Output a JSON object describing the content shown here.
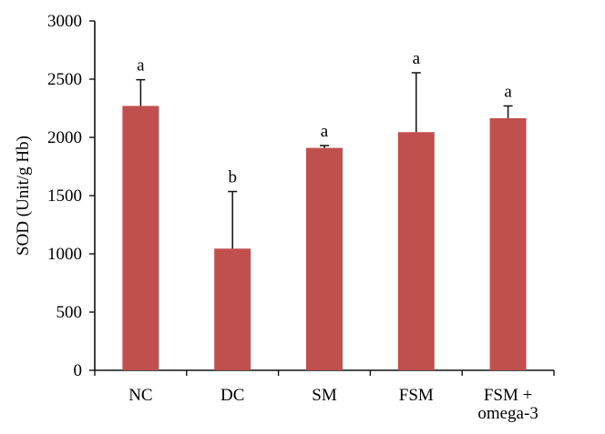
{
  "chart_data": {
    "type": "bar",
    "title": "",
    "xlabel": "",
    "ylabel": "SOD (Unit/g Hb)",
    "ylim": [
      0,
      3000
    ],
    "yticks": [
      0,
      500,
      1000,
      1500,
      2000,
      2500,
      3000
    ],
    "grid": false,
    "legend": null,
    "categories": [
      "NC",
      "DC",
      "SM",
      "FSM",
      "FSM + omega-3"
    ],
    "category_lines": [
      [
        "NC"
      ],
      [
        "DC"
      ],
      [
        "SM"
      ],
      [
        "FSM"
      ],
      [
        "FSM +",
        "omega-3"
      ]
    ],
    "values": [
      2270,
      1045,
      1910,
      2045,
      2165
    ],
    "error_upper": [
      2495,
      1535,
      1930,
      2555,
      2270
    ],
    "significance_letters": [
      "a",
      "b",
      "a",
      "a",
      "a"
    ],
    "bar_color": "#C0504D"
  }
}
